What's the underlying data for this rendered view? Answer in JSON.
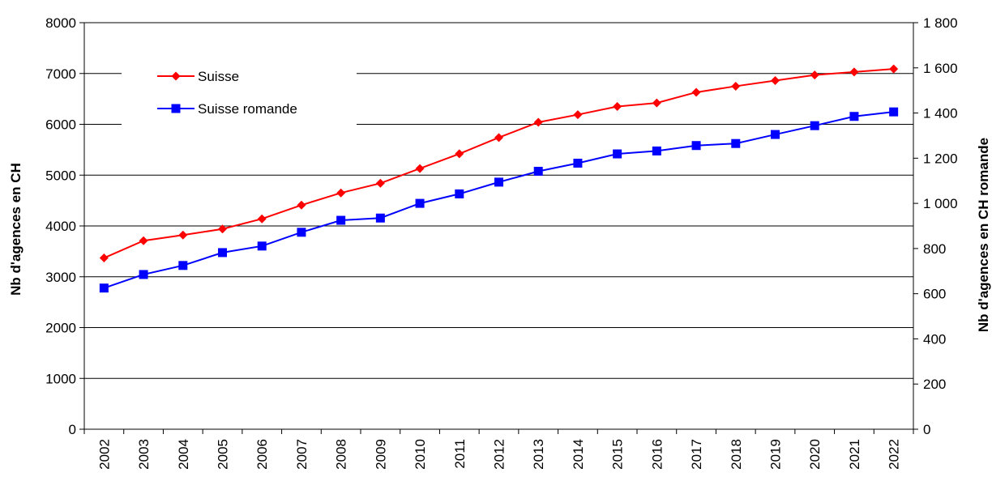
{
  "chart_data": {
    "type": "line",
    "title": "",
    "x": [
      "2002",
      "2003",
      "2004",
      "2005",
      "2006",
      "2007",
      "2008",
      "2009",
      "2010",
      "2011",
      "2012",
      "2013",
      "2014",
      "2015",
      "2016",
      "2017",
      "2018",
      "2019",
      "2020",
      "2021",
      "2022"
    ],
    "y_left": {
      "label": "Nb d'agences en CH",
      "range": [
        0,
        8000
      ],
      "ticks": [
        "0",
        "1000",
        "2000",
        "3000",
        "4000",
        "5000",
        "6000",
        "7000",
        "8000"
      ]
    },
    "y_right": {
      "label": "Nb d'agences en CH romande",
      "range": [
        0,
        1800
      ],
      "ticks": [
        "0",
        "200",
        "400",
        "600",
        "800",
        "1 000",
        "1 200",
        "1 400",
        "1 600",
        "1 800"
      ]
    },
    "grid": true,
    "legend_position": "top-left",
    "series": [
      {
        "name": "Suisse",
        "axis": "left",
        "color": "#ff0000",
        "marker": "diamond",
        "values": [
          3370,
          3710,
          3820,
          3940,
          4140,
          4410,
          4650,
          4840,
          5130,
          5420,
          5740,
          6040,
          6190,
          6350,
          6420,
          6630,
          6750,
          6860,
          6970,
          7030,
          7090
        ]
      },
      {
        "name": "Suisse romande",
        "axis": "right",
        "color": "#0000ff",
        "marker": "square",
        "values": [
          625,
          685,
          725,
          782,
          811,
          872,
          925,
          935,
          1000,
          1042,
          1094,
          1142,
          1178,
          1219,
          1232,
          1256,
          1265,
          1305,
          1344,
          1385,
          1405
        ]
      }
    ]
  }
}
